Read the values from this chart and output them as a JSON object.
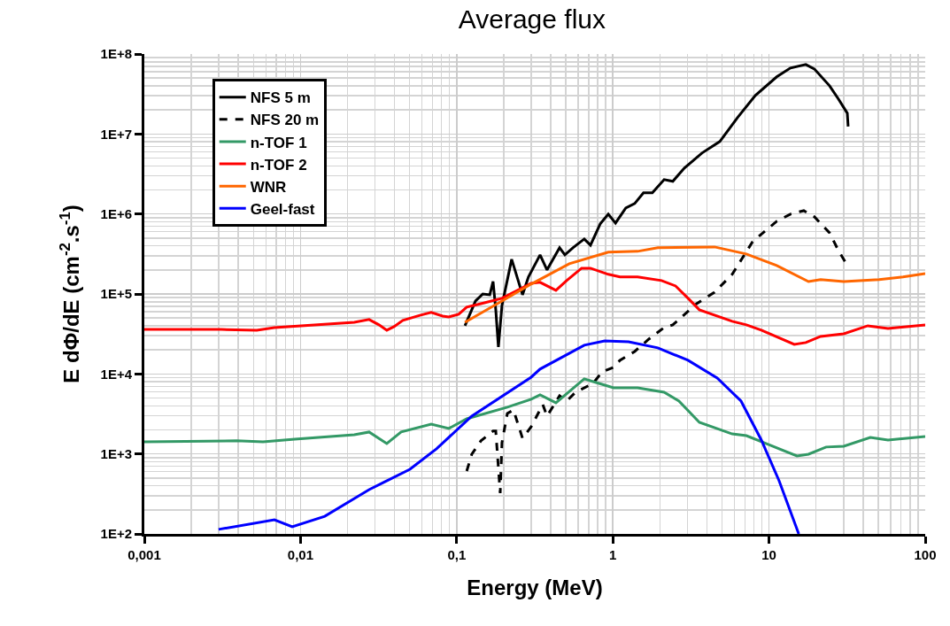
{
  "chart_data": {
    "type": "line",
    "title": "Average flux",
    "xlabel": "Energy (MeV)",
    "ylabel": "E dΦ/dE (cm$^{-2}$.s$^{-1}$)",
    "log": "xy",
    "grid": true,
    "legend": "top left",
    "xlim": [
      0.001,
      100
    ],
    "xticks": [
      {
        "value": 0.001,
        "label": "0,001"
      },
      {
        "value": 0.01,
        "label": "0,01"
      },
      {
        "value": 0.1,
        "label": "0,1"
      },
      1,
      10,
      100
    ],
    "ylim": [
      100,
      100000000
    ],
    "yticks": [
      {
        "value": 100,
        "label": "1E+2"
      },
      {
        "value": 1000,
        "label": "1E+3"
      },
      {
        "value": 10000,
        "label": "1E+4"
      },
      {
        "value": 100000,
        "label": "1E+5"
      },
      {
        "value": 1000000,
        "label": "1E+6"
      },
      {
        "value": 10000000,
        "label": "1E+7"
      },
      {
        "value": 100000000,
        "label": "1E+8"
      }
    ],
    "series": [
      {
        "name": "NFS 5 m",
        "color": "#000000",
        "line_style": "solid",
        "x": [
          0.113,
          0.132,
          0.147,
          0.163,
          0.171,
          0.178,
          0.185,
          0.195,
          0.225,
          0.264,
          0.288,
          0.342,
          0.379,
          0.456,
          0.493,
          0.555,
          0.656,
          0.719,
          0.83,
          0.935,
          1.04,
          1.21,
          1.38,
          1.57,
          1.79,
          2.13,
          2.42,
          2.87,
          3.72,
          4.84,
          6.28,
          8.17,
          11.2,
          13.7,
          17.2,
          19.5,
          24.4,
          27.8,
          31.7,
          32.1
        ],
        "values": [
          40000,
          81700,
          100000,
          97700,
          143000,
          63400,
          21700,
          71900,
          271000,
          97700,
          163000,
          308000,
          200000,
          378000,
          308000,
          378000,
          487000,
          407000,
          752000,
          995000,
          771000,
          1190000,
          1350000,
          1840000,
          1840000,
          2690000,
          2560000,
          3750000,
          5780000,
          8050000,
          16000000,
          30300000,
          51800000,
          66800000,
          74000000,
          65100000,
          40100000,
          27400000,
          18200000,
          12400000
        ]
      },
      {
        "name": "NFS 20 m",
        "color": "#000000",
        "line_style": "dashed",
        "x": [
          0.116,
          0.125,
          0.143,
          0.171,
          0.178,
          0.19,
          0.195,
          0.211,
          0.231,
          0.264,
          0.3,
          0.356,
          0.379,
          0.456,
          0.506,
          0.577,
          0.748,
          0.853,
          1.01,
          1.11,
          1.38,
          1.7,
          2.13,
          2.42,
          3.44,
          4.48,
          5.81,
          7.85,
          11.2,
          13.7,
          16.7,
          19.5,
          24.4,
          27.8,
          31.7
        ],
        "values": [
          611,
          993,
          1460,
          1930,
          1930,
          323,
          1380,
          3210,
          3550,
          1570,
          2190,
          4140,
          2970,
          5340,
          4580,
          5910,
          7630,
          10600,
          12100,
          14800,
          19100,
          27300,
          38000,
          41100,
          75700,
          105000,
          176000,
          451000,
          811000,
          995000,
          1100000,
          923000,
          582000,
          350000,
          227000
        ]
      },
      {
        "name": "n-TOF 1",
        "color": "#339966",
        "line_style": "solid",
        "x": [
          0.001,
          0.00389,
          0.00575,
          0.0092,
          0.0221,
          0.0275,
          0.0357,
          0.0441,
          0.0687,
          0.0891,
          0.116,
          0.211,
          0.3,
          0.342,
          0.432,
          0.656,
          0.748,
          1.01,
          1.44,
          2.13,
          2.65,
          3.58,
          5.81,
          7.16,
          10.2,
          15.1,
          17.9,
          23.2,
          30.1,
          44.5,
          57.8,
          100
        ],
        "values": [
          1420,
          1460,
          1420,
          1530,
          1740,
          1880,
          1350,
          1880,
          2360,
          2080,
          2750,
          3840,
          4820,
          5480,
          4360,
          8670,
          8030,
          6720,
          6720,
          5910,
          4580,
          2480,
          1780,
          1690,
          1280,
          944,
          993,
          1220,
          1250,
          1610,
          1490,
          1650
        ]
      },
      {
        "name": "n-TOF 2",
        "color": "#ff0000",
        "line_style": "solid",
        "x": [
          0.001,
          0.00311,
          0.00525,
          0.00681,
          0.0101,
          0.0221,
          0.0275,
          0.0318,
          0.0357,
          0.0397,
          0.0452,
          0.0588,
          0.0687,
          0.0813,
          0.0891,
          0.103,
          0.116,
          0.143,
          0.195,
          0.3,
          0.342,
          0.432,
          0.506,
          0.631,
          0.719,
          0.935,
          1.11,
          1.44,
          2.05,
          2.52,
          3.03,
          3.58,
          5.81,
          7.16,
          8.93,
          14.5,
          17.2,
          21.4,
          30.1,
          42.9,
          57.8,
          100
        ],
        "values": [
          36000,
          36000,
          35200,
          38000,
          40000,
          44300,
          47900,
          41100,
          35200,
          39000,
          46700,
          54400,
          58700,
          53000,
          51700,
          55700,
          68400,
          75700,
          88300,
          136000,
          140000,
          111000,
          147000,
          210000,
          210000,
          176000,
          163000,
          163000,
          147000,
          126000,
          88300,
          63400,
          45500,
          41100,
          35200,
          23400,
          24700,
          29500,
          31800,
          40000,
          37100,
          41100
        ]
      },
      {
        "name": "WNR",
        "color": "#ff6600",
        "line_style": "solid",
        "x": [
          0.113,
          0.195,
          0.3,
          0.526,
          0.935,
          1.44,
          1.94,
          4.48,
          7.16,
          11.2,
          17.9,
          21.4,
          30.1,
          50.7,
          72.1,
          100
        ],
        "values": [
          44300,
          81700,
          133000,
          239000,
          333000,
          341000,
          378000,
          387000,
          316000,
          227000,
          143000,
          151000,
          143000,
          151000,
          163000,
          180000
        ]
      },
      {
        "name": "Geel-fast",
        "color": "#0000ff",
        "line_style": "solid",
        "x": [
          0.00299,
          0.00681,
          0.00885,
          0.0143,
          0.0275,
          0.034,
          0.0502,
          0.0743,
          0.125,
          0.3,
          0.342,
          0.656,
          0.887,
          1.26,
          1.94,
          3.03,
          4.66,
          6.62,
          8.93,
          11.6,
          15.5
        ],
        "values": [
          114,
          150,
          123,
          166,
          358,
          439,
          643,
          1160,
          2970,
          9120,
          11500,
          22900,
          25900,
          25300,
          21200,
          14800,
          8890,
          4580,
          1490,
          462,
          100
        ]
      }
    ]
  }
}
